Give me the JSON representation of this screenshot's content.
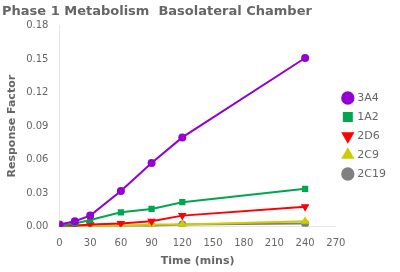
{
  "chart_data": {
    "type": "line",
    "title": "Phase 1 Metabolism  Basolateral Chamber",
    "x_label": "Time (mins)",
    "y_label": "Response Factor",
    "x": [
      0,
      15,
      30,
      60,
      90,
      120,
      240
    ],
    "series": [
      {
        "name": "3A4",
        "color": "#9400D3",
        "marker": "circle",
        "values": [
          0.002,
          0.005,
          0.01,
          0.032,
          0.057,
          0.08,
          0.151
        ]
      },
      {
        "name": "1A2",
        "color": "#00A550",
        "marker": "square",
        "values": [
          0.001,
          0.003,
          0.006,
          0.013,
          0.016,
          0.022,
          0.034
        ]
      },
      {
        "name": "2D6",
        "color": "#FF0000",
        "marker": "triangle_down",
        "values": [
          0.001,
          0.001,
          0.002,
          0.003,
          0.005,
          0.01,
          0.018
        ]
      },
      {
        "name": "2C9",
        "color": "#CCCC00",
        "marker": "triangle_up",
        "values": [
          0.0,
          0.001,
          0.001,
          0.001,
          0.002,
          0.002,
          0.005
        ]
      },
      {
        "name": "2C19",
        "color": "#808080",
        "marker": "circle",
        "values": [
          0.0,
          0.001,
          0.001,
          0.001,
          0.001,
          0.002,
          0.003
        ]
      }
    ],
    "xlim": [
      0,
      270
    ],
    "ylim": [
      0,
      0.18
    ],
    "xticks": [
      0,
      30,
      60,
      90,
      120,
      150,
      180,
      210,
      240,
      270
    ],
    "yticks": [
      {
        "value": 0,
        "label": "0.00"
      },
      0.03,
      0.06,
      0.09,
      0.12,
      0.15,
      0.18
    ],
    "grid": false,
    "legend": "right"
  }
}
